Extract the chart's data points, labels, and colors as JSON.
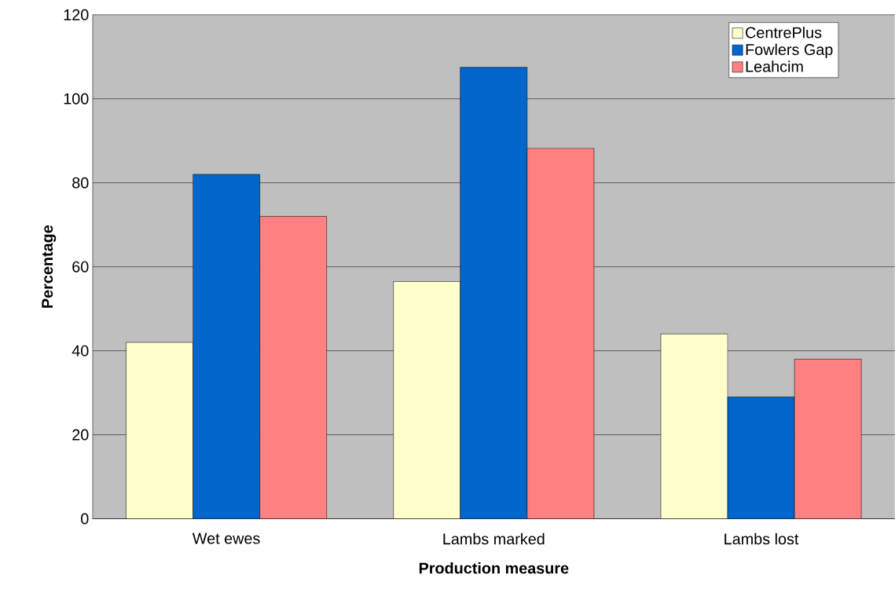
{
  "chart_data": {
    "type": "bar",
    "xlabel": "Production measure",
    "ylabel": "Percentage",
    "categories": [
      "Wet ewes",
      "Lambs marked",
      "Lambs lost"
    ],
    "series": [
      {
        "name": "CentrePlus",
        "color": "#ffffcc",
        "values": [
          42,
          56.5,
          44
        ]
      },
      {
        "name": "Fowlers Gap",
        "color": "#0066cc",
        "values": [
          82,
          107.5,
          29
        ]
      },
      {
        "name": "Leahcim",
        "color": "#ff8080",
        "values": [
          72,
          88.2,
          38
        ]
      }
    ],
    "ylim": [
      0,
      120
    ],
    "yticks": [
      0,
      20,
      40,
      60,
      80,
      100,
      120
    ],
    "grid": "y",
    "legend": "top right"
  }
}
